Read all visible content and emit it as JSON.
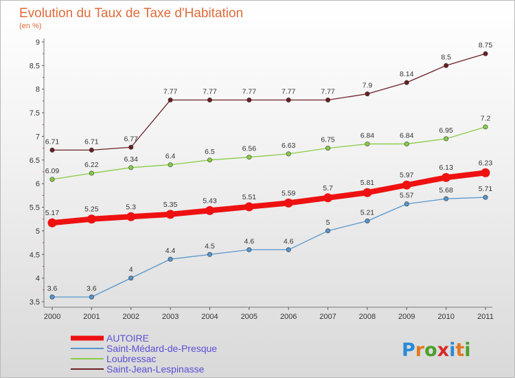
{
  "chart_data": {
    "type": "line",
    "title": "Evolution du Taux de Taxe d'Habitation",
    "subtitle": "(en %)",
    "x": [
      "2000",
      "2001",
      "2002",
      "2003",
      "2004",
      "2005",
      "2006",
      "2007",
      "2008",
      "2009",
      "2010",
      "2011"
    ],
    "y_ticks": [
      "3.5",
      "4",
      "4.5",
      "5",
      "5.5",
      "6",
      "6.5",
      "7",
      "7.5",
      "8",
      "8.5",
      "9"
    ],
    "ylim": [
      3.5,
      9
    ],
    "grid": false,
    "legend_position": "bottom-left",
    "series": [
      {
        "name": "Saint-Jean-Lespinasse",
        "color": "#6b1f23",
        "values": [
          6.71,
          6.71,
          6.77,
          7.77,
          7.77,
          7.77,
          7.77,
          7.77,
          7.9,
          8.14,
          8.5,
          8.75
        ],
        "labels": [
          "6.71",
          "6.71",
          "6.77",
          "7.77",
          "7.77",
          "7.77",
          "7.77",
          "7.77",
          "7.9",
          "8.14",
          "8.5",
          "8.75"
        ]
      },
      {
        "name": "Loubressac",
        "color": "#88cc44",
        "values": [
          6.09,
          6.22,
          6.34,
          6.4,
          6.5,
          6.56,
          6.63,
          6.75,
          6.84,
          6.84,
          6.95,
          7.2
        ],
        "labels": [
          "6.09",
          "6.22",
          "6.34",
          "6.4",
          "6.5",
          "6.56",
          "6.63",
          "6.75",
          "6.84",
          "6.84",
          "6.95",
          "7.2"
        ]
      },
      {
        "name": "Saint-Médard-de-Presque",
        "color": "#5595cc",
        "values": [
          3.6,
          3.6,
          4,
          4.4,
          4.5,
          4.6,
          4.6,
          5,
          5.21,
          5.57,
          5.68,
          5.71
        ],
        "labels": [
          "3.6",
          "3.6",
          "4",
          "4.4",
          "4.5",
          "4.6",
          "4.6",
          "5",
          "5.21",
          "5.57",
          "5.68",
          "5.71"
        ]
      },
      {
        "name": "AUTOIRE",
        "color": "#ee1111",
        "values": [
          5.17,
          5.25,
          5.3,
          5.35,
          5.43,
          5.51,
          5.59,
          5.7,
          5.81,
          5.97,
          6.13,
          6.23
        ],
        "labels": [
          "5.17",
          "5.25",
          "5.3",
          "5.35",
          "5.43",
          "5.51",
          "5.59",
          "5.7",
          "5.81",
          "5.97",
          "6.13",
          "6.23"
        ]
      }
    ],
    "legend": [
      "AUTOIRE",
      "Saint-Médard-de-Presque",
      "Loubressac",
      "Saint-Jean-Lespinasse"
    ]
  },
  "logo": {
    "text": "Proxiti",
    "letters": [
      "P",
      "r",
      "o",
      "x",
      "i",
      "t",
      "i"
    ],
    "colors": [
      "#2a8ad8",
      "#e07a20",
      "#4aa02a",
      "#d62a2a",
      "#2a8ad8",
      "#e07a20",
      "#4aa02a"
    ]
  }
}
